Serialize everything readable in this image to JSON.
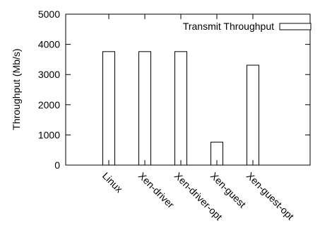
{
  "chart_data": {
    "type": "bar",
    "categories": [
      "Linux",
      "Xen-driver",
      "Xen-driver-opt",
      "Xen-guest",
      "Xen-guest-opt"
    ],
    "series": [
      {
        "name": "Transmit Throughput",
        "values": [
          3760,
          3760,
          3760,
          760,
          3310
        ]
      }
    ],
    "title": "",
    "xlabel": "",
    "ylabel": "Throughput (Mb/s)",
    "ylim": [
      0,
      5000
    ],
    "yticks": [
      0,
      1000,
      2000,
      3000,
      4000,
      5000
    ],
    "grid": false,
    "legend_position": "top-right",
    "colors": {
      "bar_fill": "#ffffff",
      "bar_stroke": "#000000",
      "axis": "#000000"
    }
  }
}
